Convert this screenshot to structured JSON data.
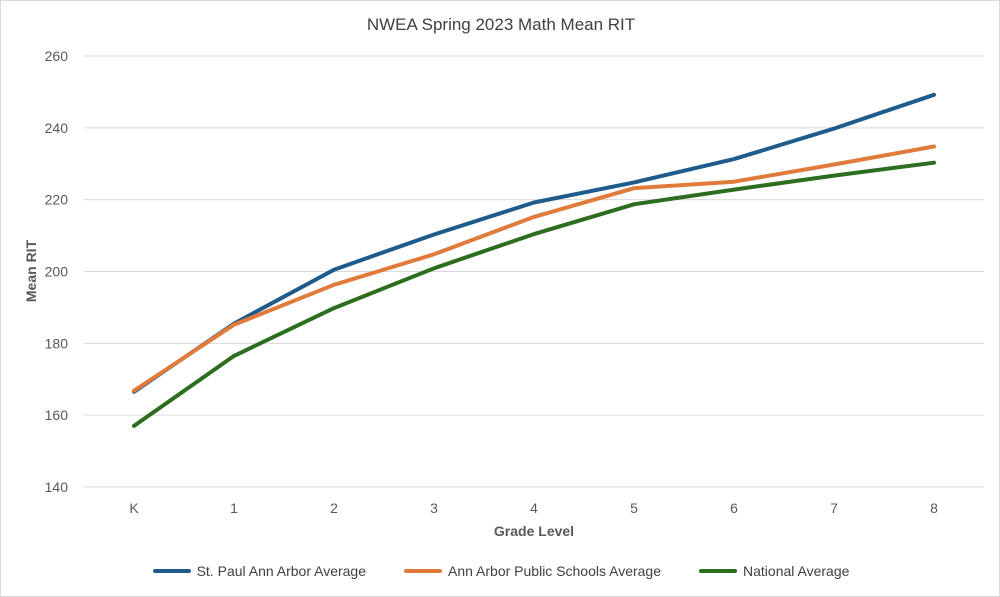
{
  "chart_data": {
    "type": "line",
    "title": "NWEA Spring 2023 Math Mean RIT",
    "xlabel": "Grade Level",
    "ylabel": "Mean RIT",
    "categories": [
      "K",
      "1",
      "2",
      "3",
      "4",
      "5",
      "6",
      "7",
      "8"
    ],
    "ylim": [
      140,
      260
    ],
    "yticks": [
      "140",
      "160",
      "180",
      "200",
      "220",
      "240",
      "260"
    ],
    "grid": "horizontal",
    "legend": "bottom",
    "series": [
      {
        "name": "St. Paul Ann Arbor Average",
        "color": "#1f5c8b",
        "values": [
          166.5,
          185.5,
          200.5,
          210.3,
          219.2,
          224.8,
          231.3,
          239.8,
          249.2
        ]
      },
      {
        "name": "Ann Arbor Public Schools Average",
        "color": "#e07b3c",
        "values": [
          166.8,
          185.2,
          196.3,
          204.8,
          215.2,
          223.2,
          225.0,
          229.8,
          234.8
        ]
      },
      {
        "name": "National Average",
        "color": "#2c6e1f",
        "values": [
          157.0,
          176.5,
          189.8,
          200.9,
          210.4,
          218.7,
          222.8,
          226.7,
          230.3
        ]
      }
    ]
  }
}
